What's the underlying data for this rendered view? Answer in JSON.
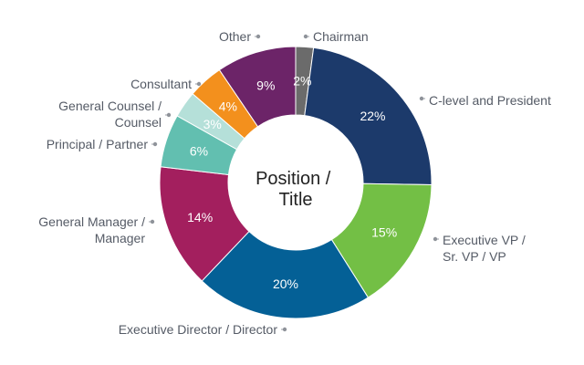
{
  "chart_data": {
    "type": "pie",
    "donut": true,
    "title": "Position / Title",
    "title_lines": [
      "Position /",
      "Title"
    ],
    "slices": [
      {
        "label": "Chairman",
        "label_lines": [
          "Chairman"
        ],
        "value": 2,
        "value_label": "2%",
        "color": "#6b6b6b"
      },
      {
        "label": "C-level and President",
        "label_lines": [
          "C-level and President"
        ],
        "value": 22,
        "value_label": "22%",
        "color": "#1c3a6b"
      },
      {
        "label": "Executive VP / Sr. VP / VP",
        "label_lines": [
          "Executive VP /",
          "Sr. VP / VP"
        ],
        "value": 15,
        "value_label": "15%",
        "color": "#73bf45"
      },
      {
        "label": "Executive Director / Director",
        "label_lines": [
          "Executive Director / Director"
        ],
        "value": 20,
        "value_label": "20%",
        "color": "#046096"
      },
      {
        "label": "General Manager / Manager",
        "label_lines": [
          "General Manager /",
          "Manager"
        ],
        "value": 14,
        "value_label": "14%",
        "color": "#a31f5e"
      },
      {
        "label": "Principal / Partner",
        "label_lines": [
          "Principal / Partner"
        ],
        "value": 6,
        "value_label": "6%",
        "color": "#62bfb0"
      },
      {
        "label": "General Counsel / Counsel",
        "label_lines": [
          "General Counsel /",
          "Counsel"
        ],
        "value": 3,
        "value_label": "3%",
        "color": "#b5e0d9"
      },
      {
        "label": "Consultant",
        "label_lines": [
          "Consultant"
        ],
        "value": 4,
        "value_label": "4%",
        "color": "#f3901d"
      },
      {
        "label": "Other",
        "label_lines": [
          "Other"
        ],
        "value": 9,
        "value_label": "9%",
        "color": "#6c2468"
      }
    ]
  }
}
